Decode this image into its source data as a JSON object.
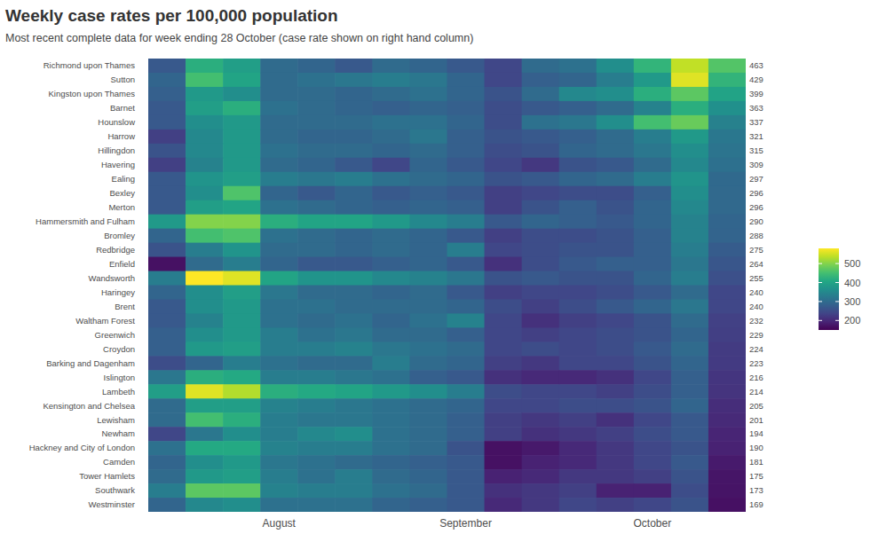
{
  "chart_data": {
    "type": "heatmap",
    "title": "Weekly case rates per 100,000 population",
    "subtitle": "Most recent complete data for week ending 28 October (case rate shown on right hand column)",
    "categories": [
      null,
      null,
      null,
      "August",
      null,
      null,
      null,
      null,
      "September",
      null,
      null,
      null,
      null,
      "October",
      null,
      null
    ],
    "rows": [
      "Richmond upon Thames",
      "Sutton",
      "Kingston upon Thames",
      "Barnet",
      "Hounslow",
      "Harrow",
      "Hillingdon",
      "Havering",
      "Ealing",
      "Bexley",
      "Merton",
      "Hammersmith and Fulham",
      "Bromley",
      "Redbridge",
      "Enfield",
      "Wandsworth",
      "Haringey",
      "Brent",
      "Waltham Forest",
      "Greenwich",
      "Croydon",
      "Barking and Dagenham",
      "Islington",
      "Lambeth",
      "Kensington and Chelsea",
      "Lewisham",
      "Newham",
      "Hackney and City of London",
      "Camden",
      "Tower Hamlets",
      "Southwark",
      "Westminster"
    ],
    "values": [
      [
        270,
        420,
        390,
        300,
        290,
        270,
        300,
        290,
        270,
        240,
        300,
        310,
        360,
        430,
        540,
        463
      ],
      [
        290,
        450,
        400,
        300,
        310,
        320,
        330,
        320,
        290,
        240,
        280,
        290,
        330,
        380,
        560,
        429
      ],
      [
        280,
        380,
        360,
        300,
        300,
        290,
        300,
        310,
        290,
        260,
        300,
        350,
        360,
        420,
        470,
        399
      ],
      [
        270,
        390,
        420,
        310,
        300,
        290,
        280,
        290,
        280,
        250,
        270,
        280,
        300,
        340,
        420,
        363
      ],
      [
        270,
        360,
        380,
        300,
        300,
        300,
        310,
        310,
        290,
        250,
        310,
        320,
        360,
        450,
        480,
        337
      ],
      [
        230,
        350,
        380,
        300,
        290,
        290,
        300,
        320,
        280,
        260,
        270,
        280,
        300,
        330,
        380,
        321
      ],
      [
        260,
        350,
        380,
        310,
        300,
        300,
        290,
        300,
        280,
        250,
        260,
        290,
        300,
        320,
        360,
        315
      ],
      [
        230,
        340,
        380,
        300,
        290,
        270,
        240,
        290,
        270,
        240,
        220,
        260,
        270,
        300,
        350,
        309
      ],
      [
        270,
        370,
        390,
        330,
        320,
        330,
        310,
        300,
        290,
        260,
        270,
        290,
        300,
        330,
        370,
        297
      ],
      [
        270,
        360,
        460,
        290,
        270,
        290,
        270,
        280,
        270,
        230,
        240,
        250,
        250,
        280,
        360,
        296
      ],
      [
        270,
        390,
        400,
        310,
        300,
        290,
        280,
        290,
        280,
        230,
        260,
        280,
        260,
        290,
        350,
        296
      ],
      [
        380,
        500,
        500,
        420,
        400,
        400,
        380,
        350,
        330,
        270,
        290,
        280,
        270,
        290,
        340,
        290
      ],
      [
        290,
        450,
        460,
        310,
        300,
        290,
        300,
        290,
        270,
        230,
        250,
        250,
        260,
        280,
        340,
        288
      ],
      [
        260,
        330,
        370,
        300,
        300,
        290,
        300,
        290,
        330,
        240,
        250,
        260,
        260,
        280,
        330,
        275
      ],
      [
        170,
        300,
        330,
        290,
        270,
        270,
        280,
        290,
        270,
        210,
        250,
        270,
        280,
        280,
        320,
        264
      ],
      [
        330,
        580,
        560,
        400,
        370,
        370,
        350,
        340,
        320,
        260,
        270,
        260,
        260,
        290,
        330,
        255
      ],
      [
        290,
        360,
        390,
        320,
        300,
        300,
        290,
        300,
        270,
        230,
        240,
        240,
        250,
        270,
        300,
        240
      ],
      [
        270,
        360,
        380,
        310,
        310,
        300,
        300,
        300,
        290,
        250,
        230,
        250,
        270,
        290,
        320,
        240
      ],
      [
        270,
        340,
        380,
        310,
        300,
        310,
        290,
        310,
        340,
        240,
        210,
        230,
        240,
        260,
        300,
        232
      ],
      [
        280,
        360,
        380,
        330,
        310,
        320,
        300,
        300,
        280,
        240,
        230,
        240,
        250,
        260,
        290,
        229
      ],
      [
        280,
        380,
        390,
        330,
        330,
        340,
        320,
        310,
        300,
        240,
        250,
        240,
        250,
        270,
        300,
        224
      ],
      [
        250,
        290,
        330,
        310,
        300,
        300,
        330,
        300,
        290,
        230,
        220,
        240,
        240,
        260,
        290,
        223
      ],
      [
        320,
        420,
        410,
        330,
        330,
        320,
        310,
        280,
        270,
        210,
        200,
        200,
        210,
        240,
        280,
        216
      ],
      [
        390,
        560,
        530,
        420,
        410,
        400,
        380,
        360,
        330,
        250,
        240,
        240,
        230,
        250,
        280,
        214
      ],
      [
        300,
        390,
        390,
        340,
        330,
        320,
        310,
        300,
        290,
        240,
        240,
        250,
        250,
        260,
        290,
        205
      ],
      [
        300,
        450,
        420,
        330,
        320,
        320,
        310,
        300,
        280,
        230,
        220,
        230,
        210,
        240,
        270,
        201
      ],
      [
        240,
        320,
        360,
        330,
        350,
        360,
        310,
        300,
        280,
        230,
        210,
        220,
        230,
        250,
        270,
        194
      ],
      [
        310,
        410,
        410,
        340,
        330,
        330,
        310,
        300,
        260,
        170,
        180,
        200,
        220,
        240,
        260,
        190
      ],
      [
        290,
        360,
        380,
        320,
        310,
        300,
        290,
        280,
        270,
        170,
        190,
        200,
        220,
        240,
        270,
        181
      ],
      [
        300,
        380,
        390,
        330,
        310,
        330,
        300,
        290,
        270,
        190,
        200,
        220,
        220,
        230,
        260,
        175
      ],
      [
        330,
        470,
        470,
        340,
        330,
        330,
        310,
        300,
        270,
        210,
        220,
        230,
        190,
        190,
        250,
        173
      ],
      [
        290,
        350,
        360,
        310,
        310,
        310,
        290,
        280,
        270,
        200,
        220,
        240,
        230,
        240,
        260,
        169
      ]
    ],
    "color_range": [
      150,
      580
    ],
    "color_ticks": [
      200,
      300,
      400,
      500
    ],
    "data_labels": true
  }
}
